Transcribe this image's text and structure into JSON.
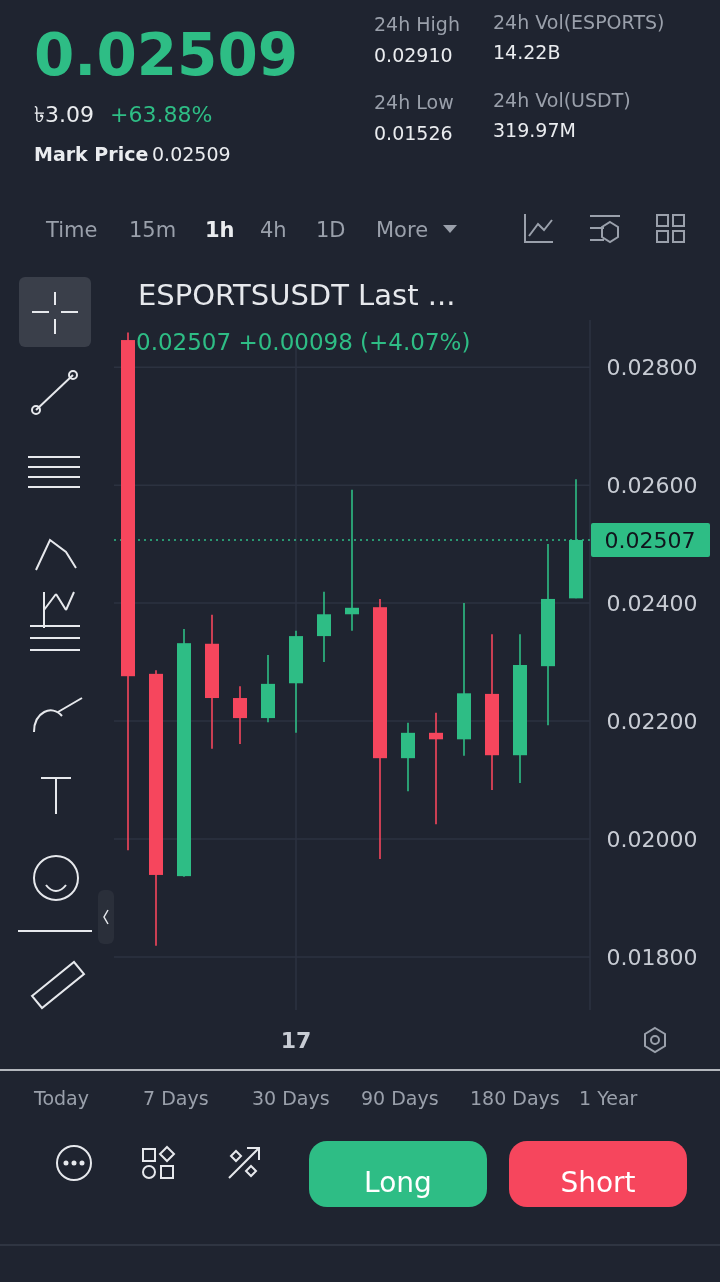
{
  "chart_data": {
    "type": "candlestick",
    "title": "ESPORTSUSDT Last ...",
    "subtitle": "0.02507  +0.00098 (+4.07%)",
    "categories": [
      null,
      null,
      null,
      null,
      null,
      null,
      "17",
      null,
      null,
      null,
      null,
      null,
      null,
      null,
      null,
      null,
      null
    ],
    "ohlc": [
      [
        0.02846,
        0.02859,
        0.01981,
        0.02276
      ],
      [
        0.0228,
        0.02286,
        0.01819,
        0.01939
      ],
      [
        0.01937,
        0.02356,
        0.01936,
        0.02332
      ],
      [
        0.02331,
        0.0238,
        0.02153,
        0.02239
      ],
      [
        0.02239,
        0.02259,
        0.02161,
        0.02205
      ],
      [
        0.02205,
        0.02312,
        0.02198,
        0.02263
      ],
      [
        0.02264,
        0.02353,
        0.0218,
        0.02344
      ],
      [
        0.02344,
        0.02419,
        0.023,
        0.02381
      ],
      [
        0.02381,
        0.02592,
        0.02353,
        0.02392
      ],
      [
        0.02393,
        0.02407,
        0.01966,
        0.02137
      ],
      [
        0.02137,
        0.02197,
        0.02081,
        0.0218
      ],
      [
        0.0218,
        0.02214,
        0.02025,
        0.02169
      ],
      [
        0.02169,
        0.024,
        0.02141,
        0.02247
      ],
      [
        0.02246,
        0.02347,
        0.02083,
        0.02142
      ],
      [
        0.02142,
        0.02347,
        0.02095,
        0.02295
      ],
      [
        0.02293,
        0.025,
        0.02193,
        0.02407
      ],
      [
        0.02408,
        0.0261,
        0.02408,
        0.02507
      ]
    ],
    "colors": [
      "#f6465d",
      "#f6465d",
      "#2ebd85",
      "#f6465d",
      "#f6465d",
      "#2ebd85",
      "#2ebd85",
      "#2ebd85",
      "#2ebd85",
      "#f6465d",
      "#2ebd85",
      "#f6465d",
      "#2ebd85",
      "#f6465d",
      "#2ebd85",
      "#2ebd85",
      "#2ebd85"
    ],
    "ylim": [
      0.0171,
      0.0288
    ],
    "yticks": [
      {
        "value": 0.018,
        "label": "0.01800"
      },
      {
        "value": 0.02,
        "label": "0.02000"
      },
      {
        "value": 0.022,
        "label": "0.02200"
      },
      {
        "value": 0.024,
        "label": "0.02400"
      },
      {
        "value": 0.026,
        "label": "0.02600"
      },
      {
        "value": 0.028,
        "label": "0.02800"
      }
    ],
    "grid": true,
    "ref_lines": [
      {
        "axis": "y",
        "value": 0.02507,
        "label": "0.02507",
        "color": "#2ebd85",
        "line_style": "dotted"
      }
    ],
    "annotations": [
      "0.02509",
      "৳3.09",
      "+63.88%",
      "Mark Price",
      "0.02509",
      "24h High",
      "0.02910",
      "24h Vol(ESPORTS)",
      "14.22B",
      "24h Low",
      "0.01526",
      "24h Vol(USDT)",
      "319.97M",
      "Time",
      "15m",
      "1h",
      "4h",
      "1D",
      "More",
      "Today",
      "7 Days",
      "30 Days",
      "90 Days",
      "180 Days",
      "1 Year",
      "Long",
      "Short"
    ]
  }
}
